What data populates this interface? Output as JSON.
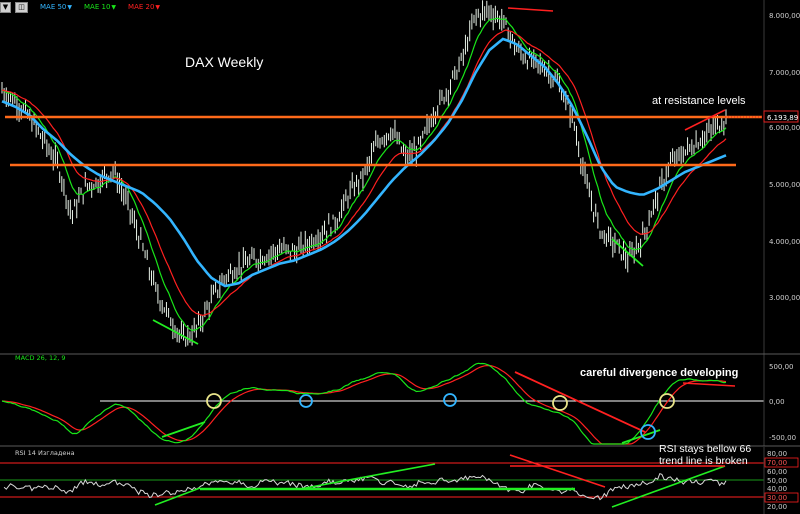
{
  "toolbar": {
    "indicators": [
      {
        "label": "MAE 50",
        "color": "#33b5ff"
      },
      {
        "label": "MAE 10",
        "color": "#19e619"
      },
      {
        "label": "MAE 20",
        "color": "#ff2020"
      }
    ]
  },
  "colors": {
    "ma50": "#33b5ff",
    "ma10": "#19e619",
    "ma20": "#ff2020",
    "resistance": "#ff6a1a",
    "candle": "#e8f2e8",
    "annotation": "#ffffff",
    "divergence_green": "#22ee22",
    "divergence_red": "#ff2020",
    "circle_yellow": "#e9e48a",
    "circle_blue": "#33b5ff",
    "price_tag": "#e22222"
  },
  "chart_data": [
    {
      "type": "line",
      "title": "DAX Weekly",
      "annotations": [
        "at resistance levels"
      ],
      "y_axis_ticks": [
        "8.000,00",
        "7.000,00",
        "6.000,00",
        "5.000,00",
        "4.000,00",
        "3.000,00"
      ],
      "last_price": "6.193,89",
      "resistance_levels": [
        6200,
        5350
      ],
      "series": [
        {
          "name": "DAX",
          "values": [
            6700,
            6500,
            6200,
            5800,
            5400,
            4500,
            5000,
            5100,
            5300,
            4700,
            4000,
            3200,
            2700,
            2300,
            2500,
            3000,
            3400,
            3600,
            3700,
            3800,
            3900,
            3850,
            4000,
            4200,
            4400,
            4900,
            5200,
            5800,
            6000,
            5500,
            5700,
            6300,
            6700,
            7200,
            8000,
            8100,
            7900,
            7400,
            7200,
            7100,
            6800,
            6200,
            5000,
            4200,
            4000,
            3700,
            4100,
            4800,
            5400,
            5600,
            5800,
            6000,
            6194
          ]
        },
        {
          "name": "MAE 50",
          "values": [
            6500,
            6400,
            6250,
            6000,
            5800,
            5550,
            5350,
            5200,
            5100,
            5000,
            4900,
            4700,
            4450,
            4100,
            3700,
            3400,
            3250,
            3300,
            3450,
            3550,
            3650,
            3700,
            3800,
            3900,
            4050,
            4250,
            4500,
            4800,
            5100,
            5350,
            5550,
            5800,
            6100,
            6500,
            7000,
            7400,
            7600,
            7500,
            7300,
            7100,
            6800,
            6400,
            5900,
            5350,
            5000,
            4900,
            4850,
            4950,
            5100,
            5250,
            5350,
            5450,
            5550
          ]
        }
      ]
    },
    {
      "type": "line",
      "title": "MACD 26, 12, 9",
      "annotations": [
        "careful divergence developing"
      ],
      "y_axis_ticks": [
        "500,00",
        "0,00",
        "-500,00"
      ]
    },
    {
      "type": "line",
      "title": "RSI 14 Изгладена",
      "annotations": [
        "RSI stays bellow 66",
        "trend line is broken"
      ],
      "y_axis_ticks": [
        "80,00",
        "70,00",
        "60,00",
        "50,00",
        "40,00",
        "30,00",
        "20,00"
      ],
      "levels": [
        70,
        30
      ]
    }
  ]
}
